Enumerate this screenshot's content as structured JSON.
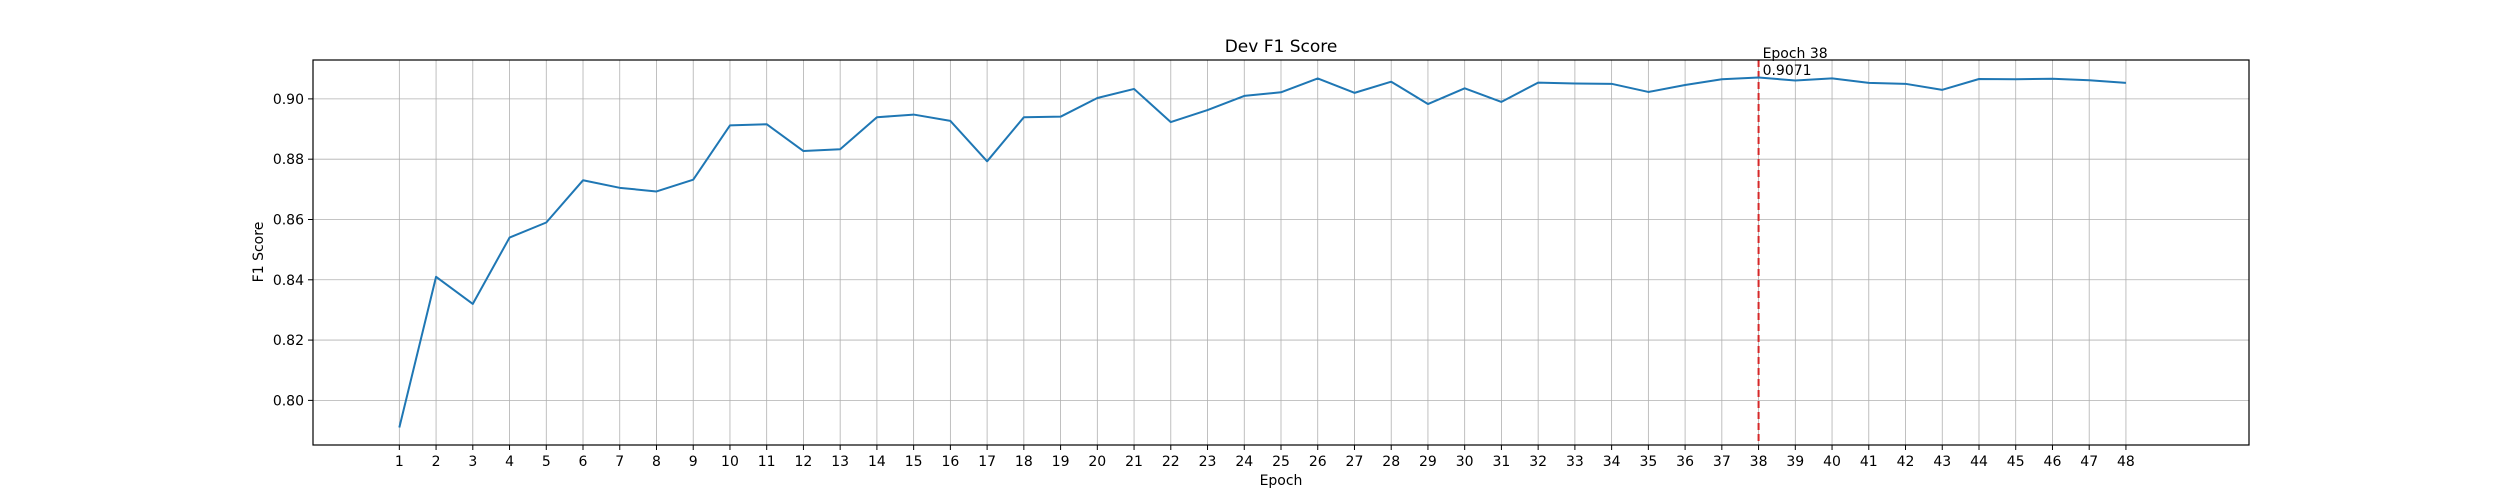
{
  "chart_data": {
    "type": "line",
    "title": "Dev F1 Score",
    "xlabel": "Epoch",
    "ylabel": "F1 Score",
    "x": [
      1,
      2,
      3,
      4,
      5,
      6,
      7,
      8,
      9,
      10,
      11,
      12,
      13,
      14,
      15,
      16,
      17,
      18,
      19,
      20,
      21,
      22,
      23,
      24,
      25,
      26,
      27,
      28,
      29,
      30,
      31,
      32,
      33,
      34,
      35,
      36,
      37,
      38,
      39,
      40,
      41,
      42,
      43,
      44,
      45,
      46,
      47,
      48
    ],
    "series": [
      {
        "color": "#1f77b4",
        "values": [
          0.791,
          0.841,
          0.832,
          0.854,
          0.859,
          0.873,
          0.8705,
          0.8693,
          0.8732,
          0.8912,
          0.8916,
          0.8827,
          0.8833,
          0.8939,
          0.8948,
          0.8927,
          0.8793,
          0.8939,
          0.8941,
          0.9003,
          0.9033,
          0.8923,
          0.8963,
          0.901,
          0.9022,
          0.9068,
          0.902,
          0.9057,
          0.8983,
          0.9035,
          0.899,
          0.9054,
          0.9051,
          0.905,
          0.9023,
          0.9046,
          0.9065,
          0.9071,
          0.9061,
          0.9068,
          0.9053,
          0.905,
          0.903,
          0.9066,
          0.9065,
          0.9067,
          0.9062,
          0.9053
        ]
      }
    ],
    "xticks": [
      "1",
      "2",
      "3",
      "4",
      "5",
      "6",
      "7",
      "8",
      "9",
      "10",
      "11",
      "12",
      "13",
      "14",
      "15",
      "16",
      "17",
      "18",
      "19",
      "20",
      "21",
      "22",
      "23",
      "24",
      "25",
      "26",
      "27",
      "28",
      "29",
      "30",
      "31",
      "32",
      "33",
      "34",
      "35",
      "36",
      "37",
      "38",
      "39",
      "40",
      "41",
      "42",
      "43",
      "44",
      "45",
      "46",
      "47",
      "48"
    ],
    "yticks": [
      "0.80",
      "0.82",
      "0.84",
      "0.86",
      "0.88",
      "0.90"
    ],
    "xlim": [
      -1.35,
      51.35
    ],
    "ylim": [
      0.7852,
      0.9129
    ],
    "grid": true,
    "legend": "none",
    "best_marker": {
      "x": 38,
      "color": "#d62728",
      "style": "dashed",
      "label_line1": "Epoch 38",
      "label_line2": "0.9071"
    }
  }
}
